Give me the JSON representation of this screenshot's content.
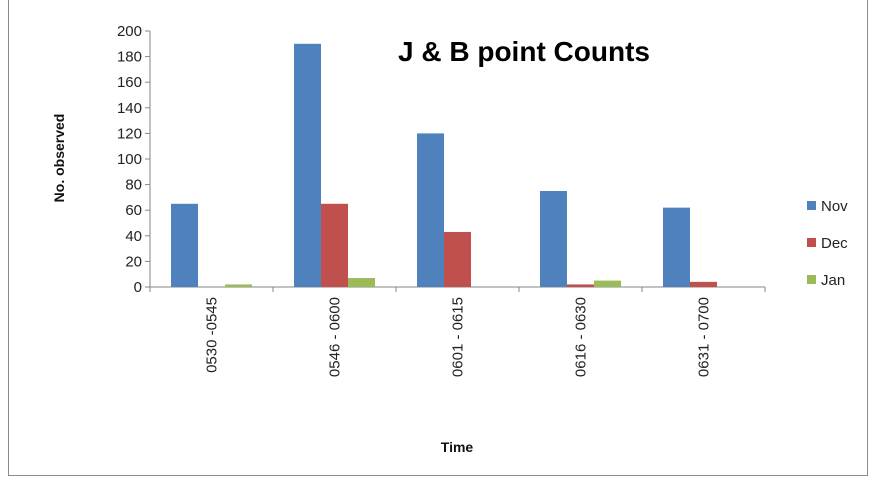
{
  "chart_data": {
    "type": "bar",
    "title": "J & B point Counts",
    "xlabel": "Time",
    "ylabel": "No. observed",
    "categories": [
      "0530 -0545",
      "0546 - 0600",
      "0601 - 0615",
      "0616 - 0630",
      "0631 - 0700"
    ],
    "ylim": [
      0,
      200
    ],
    "yticks": [
      0,
      20,
      40,
      60,
      80,
      100,
      120,
      140,
      160,
      180,
      200
    ],
    "grid": false,
    "legend_position": "right",
    "series": [
      {
        "name": "Nov",
        "color": "#4F81BD",
        "values": [
          65,
          190,
          120,
          75,
          62
        ]
      },
      {
        "name": "Dec",
        "color": "#C0504D",
        "values": [
          0,
          65,
          43,
          2,
          4
        ]
      },
      {
        "name": "Jan",
        "color": "#9BBB59",
        "values": [
          2,
          7,
          0,
          5,
          0
        ]
      }
    ]
  }
}
